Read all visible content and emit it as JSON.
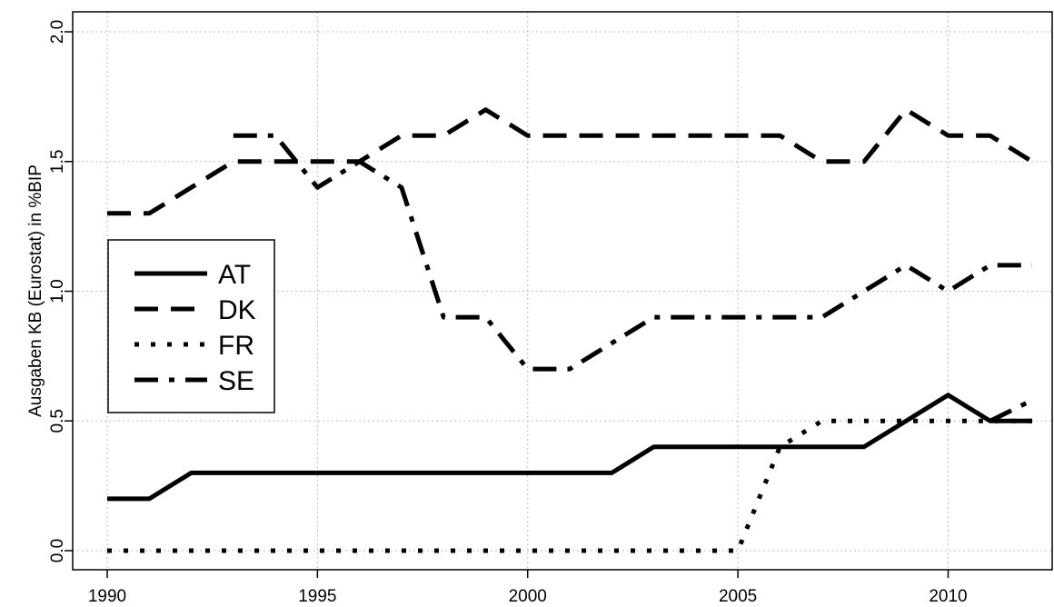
{
  "chart_data": {
    "type": "line",
    "xlabel": "",
    "ylabel": "Ausgaben KB (Eurostat) in %BIP",
    "xlim": [
      1990,
      2012
    ],
    "ylim": [
      0.0,
      2.0
    ],
    "x_ticks": [
      "1990",
      "1995",
      "2000",
      "2005",
      "2010"
    ],
    "y_ticks": [
      "0.0",
      "0.5",
      "1.0",
      "1.5",
      "2.0"
    ],
    "grid": true,
    "legend_position": "left",
    "series": [
      {
        "name": "AT",
        "line_style": "solid",
        "x": [
          1990,
          1991,
          1992,
          1993,
          1994,
          1995,
          1996,
          1997,
          1998,
          1999,
          2000,
          2001,
          2002,
          2003,
          2004,
          2005,
          2006,
          2007,
          2008,
          2009,
          2010,
          2011,
          2012
        ],
        "values": [
          0.2,
          0.2,
          0.3,
          0.3,
          0.3,
          0.3,
          0.3,
          0.3,
          0.3,
          0.3,
          0.3,
          0.3,
          0.3,
          0.4,
          0.4,
          0.4,
          0.4,
          0.4,
          0.4,
          0.5,
          0.6,
          0.5,
          0.5
        ]
      },
      {
        "name": "DK",
        "line_style": "dashed",
        "x": [
          1990,
          1991,
          1992,
          1993,
          1994,
          1995,
          1996,
          1997,
          1998,
          1999,
          2000,
          2001,
          2002,
          2003,
          2004,
          2005,
          2006,
          2007,
          2008,
          2009,
          2010,
          2011,
          2012
        ],
        "values": [
          1.3,
          1.3,
          1.4,
          1.5,
          1.5,
          1.5,
          1.5,
          1.6,
          1.6,
          1.7,
          1.6,
          1.6,
          1.6,
          1.6,
          1.6,
          1.6,
          1.6,
          1.5,
          1.5,
          1.7,
          1.6,
          1.6,
          1.5
        ]
      },
      {
        "name": "FR",
        "line_style": "dotted",
        "x": [
          1990,
          1991,
          1992,
          1993,
          1994,
          1995,
          1996,
          1997,
          1998,
          1999,
          2000,
          2001,
          2002,
          2003,
          2004,
          2005,
          2006,
          2007,
          2008,
          2009,
          2010,
          2011,
          2012
        ],
        "values": [
          0.0,
          0.0,
          0.0,
          0.0,
          0.0,
          0.0,
          0.0,
          0.0,
          0.0,
          0.0,
          0.0,
          0.0,
          0.0,
          0.0,
          0.0,
          0.0,
          0.4,
          0.5,
          0.5,
          0.5,
          0.5,
          0.5,
          0.5
        ]
      },
      {
        "name": "SE",
        "line_style": "dashdot",
        "x": [
          1993,
          1994,
          1995,
          1996,
          1997,
          1998,
          1999,
          2000,
          2001,
          2002,
          2003,
          2004,
          2005,
          2006,
          2007,
          2008,
          2009,
          2010,
          2011,
          2012
        ],
        "values": [
          1.6,
          1.6,
          1.4,
          1.5,
          1.4,
          0.9,
          0.9,
          0.7,
          0.7,
          0.8,
          0.9,
          0.9,
          0.9,
          0.9,
          0.9,
          1.0,
          1.1,
          1.0,
          1.1,
          1.1
        ]
      }
    ],
    "extra_segments": [
      {
        "series": "SE",
        "x": [
          2011,
          2012
        ],
        "values": [
          0.5,
          0.58
        ]
      }
    ]
  },
  "dash_patterns": {
    "solid": "",
    "dashed": "26 14",
    "dotted": "5 13",
    "dashdot": "26 12 6 12"
  }
}
